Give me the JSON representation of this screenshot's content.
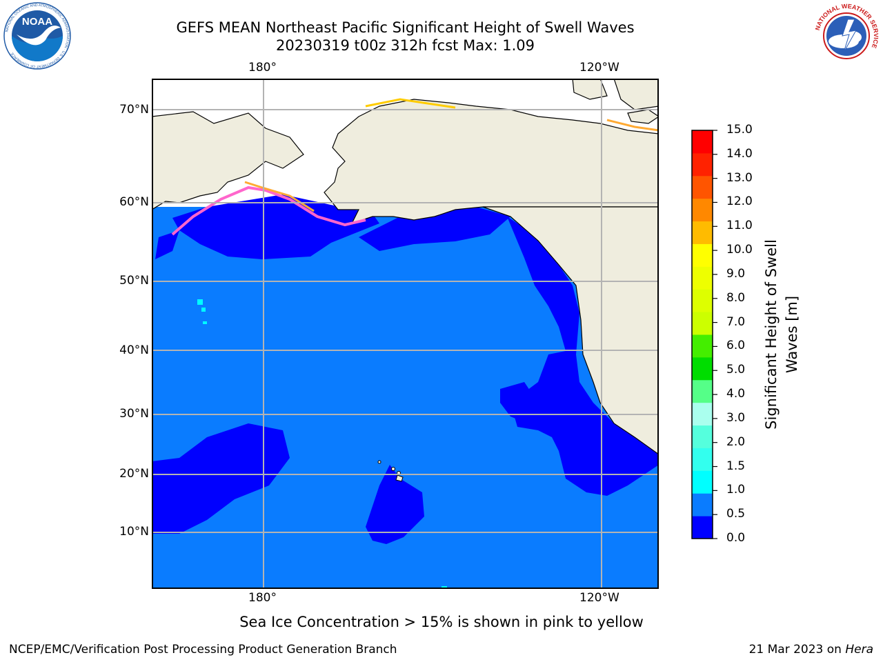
{
  "header": {
    "title_line1": "GEFS MEAN Northeast Pacific Significant Height of Swell Waves",
    "title_line2": "20230319 t00z 312h fcst   Max: 1.09"
  },
  "logos": {
    "left": {
      "text": "NOAA",
      "ring_text": "NATIONAL OCEANIC AND ATMOSPHERIC ADMINISTRATION · U.S. DEPARTMENT OF COMMERCE"
    },
    "right": {
      "ring_text": "NATIONAL WEATHER SERVICE"
    }
  },
  "map": {
    "lon_labels_top": [
      "180°",
      "120°W"
    ],
    "lon_labels_bottom": [
      "180°",
      "120°W"
    ],
    "lat_labels": [
      "70°N",
      "60°N",
      "50°N",
      "40°N",
      "30°N",
      "20°N",
      "10°N"
    ],
    "colors": {
      "ocean": "#0a7cff",
      "low": "#0000ff",
      "land": "#efedde",
      "ice_pink": "#ff66cc",
      "ice_orange": "#ffaa33",
      "ice_yellow": "#ffcc00",
      "grid": "#b3b3b3"
    }
  },
  "colorbar": {
    "label": "Significant Height of Swell Waves [m]",
    "ticks": [
      "15.0",
      "14.0",
      "13.0",
      "12.0",
      "11.0",
      "10.0",
      "9.0",
      "8.0",
      "7.0",
      "6.0",
      "5.0",
      "4.0",
      "3.0",
      "2.0",
      "1.5",
      "1.0",
      "0.5",
      "0.0"
    ],
    "colors_bottom_to_top": [
      "#0000ff",
      "#0a7cff",
      "#00ffff",
      "#33ffee",
      "#55ffdd",
      "#aaffee",
      "#55ff88",
      "#00dd00",
      "#44ee00",
      "#ccff00",
      "#ddff00",
      "#eeff00",
      "#ffff00",
      "#ffbb00",
      "#ff8800",
      "#ff5500",
      "#ff2200",
      "#ff0000"
    ]
  },
  "note": "Sea Ice Concentration > 15% is shown in pink to yellow",
  "footer": {
    "left": "NCEP/EMC/Verification Post Processing Product Generation Branch",
    "right_date": "21 Mar 2023 on",
    "right_machine": "Hera"
  }
}
